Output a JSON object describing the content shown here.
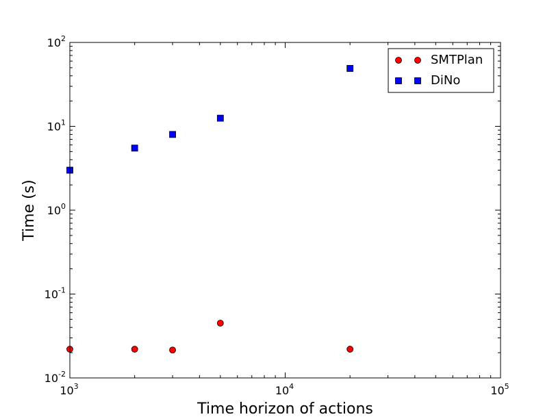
{
  "chart_data": {
    "type": "scatter",
    "xlabel": "Time horizon of actions",
    "ylabel": "Time (s)",
    "xscale": "log",
    "yscale": "log",
    "xlim": [
      1000,
      100000
    ],
    "ylim": [
      0.01,
      100
    ],
    "grid": false,
    "legend_position": "top-right",
    "x_ticks": [
      {
        "value": 1000,
        "base": "10",
        "exp": "3"
      },
      {
        "value": 10000,
        "base": "10",
        "exp": "4"
      },
      {
        "value": 100000,
        "base": "10",
        "exp": "5"
      }
    ],
    "y_ticks": [
      {
        "value": 0.01,
        "base": "10",
        "exp": "-2"
      },
      {
        "value": 0.1,
        "base": "10",
        "exp": "-1"
      },
      {
        "value": 1,
        "base": "10",
        "exp": "0"
      },
      {
        "value": 10,
        "base": "10",
        "exp": "1"
      },
      {
        "value": 100,
        "base": "10",
        "exp": "2"
      }
    ],
    "series": [
      {
        "name": "SMTPlan",
        "marker": "circle",
        "color": "#ff0000",
        "points": [
          {
            "x": 1000,
            "y": 0.022
          },
          {
            "x": 2000,
            "y": 0.022
          },
          {
            "x": 3000,
            "y": 0.0215
          },
          {
            "x": 5000,
            "y": 0.045
          },
          {
            "x": 20000,
            "y": 0.022
          }
        ]
      },
      {
        "name": "DiNo",
        "marker": "square",
        "color": "#0000ff",
        "points": [
          {
            "x": 1000,
            "y": 3.0
          },
          {
            "x": 2000,
            "y": 5.5
          },
          {
            "x": 3000,
            "y": 8.0
          },
          {
            "x": 5000,
            "y": 12.5
          },
          {
            "x": 20000,
            "y": 49
          }
        ]
      }
    ]
  }
}
